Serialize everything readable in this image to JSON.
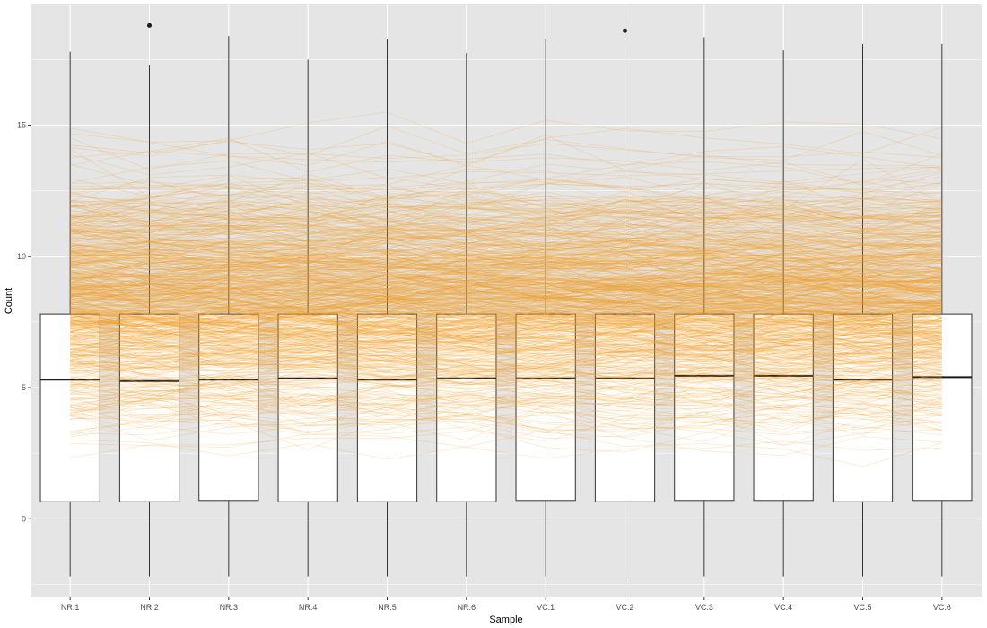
{
  "chart_data": {
    "type": "boxplot",
    "overlay": "parallel-lines",
    "title": "",
    "xlabel": "Sample",
    "ylabel": "Count",
    "ylim": [
      -3.0,
      19.6
    ],
    "yticks": [
      0,
      5,
      10,
      15
    ],
    "grid": true,
    "legend": "none",
    "colors": {
      "panel": "#e5e5e5",
      "grid_major": "#ffffff",
      "box_fill": "#ffffff",
      "box_stroke": "#333333",
      "line": "#f39a1e"
    },
    "categories": [
      "NR.1",
      "NR.2",
      "NR.3",
      "NR.4",
      "NR.5",
      "NR.6",
      "VC.1",
      "VC.2",
      "VC.3",
      "VC.4",
      "VC.5",
      "VC.6"
    ],
    "boxes": [
      {
        "name": "NR.1",
        "min": -2.2,
        "q1": 0.65,
        "median": 5.3,
        "q3": 7.8,
        "max": 17.8,
        "outliers": []
      },
      {
        "name": "NR.2",
        "min": -2.2,
        "q1": 0.65,
        "median": 5.25,
        "q3": 7.8,
        "max": 17.3,
        "outliers": [
          18.8
        ]
      },
      {
        "name": "NR.3",
        "min": -2.2,
        "q1": 0.7,
        "median": 5.3,
        "q3": 7.8,
        "max": 18.4,
        "outliers": []
      },
      {
        "name": "NR.4",
        "min": -2.2,
        "q1": 0.65,
        "median": 5.35,
        "q3": 7.8,
        "max": 17.5,
        "outliers": []
      },
      {
        "name": "NR.5",
        "min": -2.2,
        "q1": 0.65,
        "median": 5.3,
        "q3": 7.8,
        "max": 18.3,
        "outliers": []
      },
      {
        "name": "NR.6",
        "min": -2.2,
        "q1": 0.65,
        "median": 5.35,
        "q3": 7.8,
        "max": 17.75,
        "outliers": []
      },
      {
        "name": "VC.1",
        "min": -2.2,
        "q1": 0.7,
        "median": 5.35,
        "q3": 7.8,
        "max": 18.3,
        "outliers": []
      },
      {
        "name": "VC.2",
        "min": -2.2,
        "q1": 0.65,
        "median": 5.35,
        "q3": 7.8,
        "max": 18.3,
        "outliers": [
          18.6
        ]
      },
      {
        "name": "VC.3",
        "min": -2.2,
        "q1": 0.7,
        "median": 5.45,
        "q3": 7.8,
        "max": 18.35,
        "outliers": []
      },
      {
        "name": "VC.4",
        "min": -2.2,
        "q1": 0.7,
        "median": 5.45,
        "q3": 7.8,
        "max": 17.85,
        "outliers": []
      },
      {
        "name": "VC.5",
        "min": -2.2,
        "q1": 0.65,
        "median": 5.3,
        "q3": 7.8,
        "max": 18.1,
        "outliers": []
      },
      {
        "name": "VC.6",
        "min": -2.2,
        "q1": 0.7,
        "median": 5.4,
        "q3": 7.8,
        "max": 18.1,
        "outliers": []
      }
    ],
    "lines": {
      "count_approx": 650,
      "range": [
        2.0,
        15.5
      ],
      "opacity": 0.22
    }
  }
}
